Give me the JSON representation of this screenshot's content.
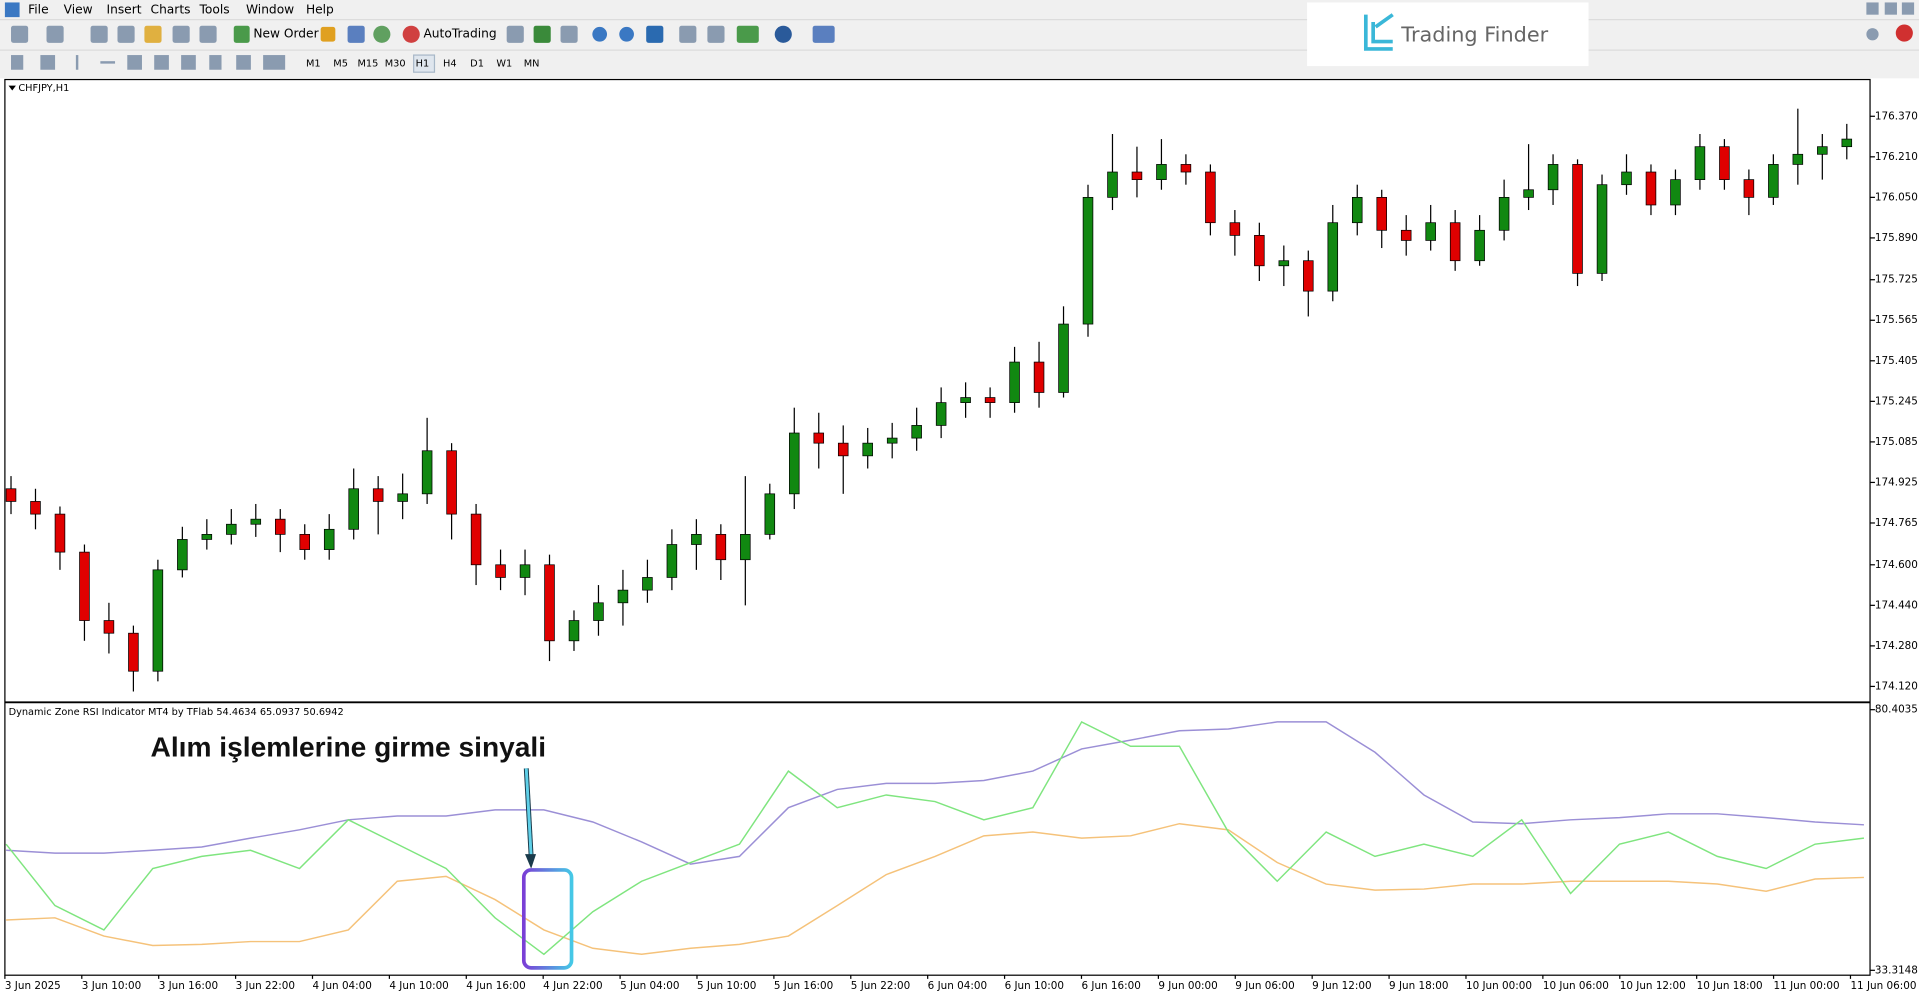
{
  "menu": [
    "File",
    "View",
    "Insert",
    "Charts",
    "Tools",
    "Window",
    "Help"
  ],
  "toolbar": {
    "new_order": "New Order",
    "auto_trading": "AutoTrading",
    "timeframes": [
      "M1",
      "M5",
      "M15",
      "M30",
      "H1",
      "H4",
      "D1",
      "W1",
      "MN"
    ]
  },
  "logo": "Trading Finder",
  "annotation": "Alım işlemlerine girme sinyali",
  "chart_data": [
    {
      "type": "candlestick",
      "title": "CHFJPY,H1",
      "up_color": "#118811",
      "down_color": "#e00000",
      "ylim": [
        174.062,
        176.515
      ],
      "yticks": [
        {
          "value": 176.37,
          "label": "176.370"
        },
        {
          "value": 176.21,
          "label": "176.210"
        },
        {
          "value": 176.05,
          "label": "176.050"
        },
        {
          "value": 175.89,
          "label": "175.890"
        },
        175.725,
        175.565,
        175.405,
        175.245,
        175.085,
        174.925,
        174.765,
        {
          "value": 174.6,
          "label": "174.600"
        },
        {
          "value": 174.44,
          "label": "174.440"
        },
        {
          "value": 174.28,
          "label": "174.280"
        },
        {
          "value": 174.12,
          "label": "174.120"
        }
      ],
      "time_labels": [
        "3 Jun 2025",
        "3 Jun 10:00",
        "3 Jun 16:00",
        "3 Jun 22:00",
        "4 Jun 04:00",
        "4 Jun 10:00",
        "4 Jun 16:00",
        "4 Jun 22:00",
        "5 Jun 04:00",
        "5 Jun 10:00",
        "5 Jun 16:00",
        "5 Jun 22:00",
        "6 Jun 04:00",
        "6 Jun 10:00",
        "6 Jun 16:00",
        "9 Jun 00:00",
        "9 Jun 06:00",
        "9 Jun 12:00",
        "9 Jun 18:00",
        "10 Jun 00:00",
        "10 Jun 06:00",
        "10 Jun 12:00",
        "10 Jun 18:00",
        "11 Jun 00:00",
        "11 Jun 06:00"
      ],
      "open": [
        174.9,
        174.85,
        174.8,
        174.65,
        174.38,
        174.33,
        174.18,
        174.58,
        174.7,
        174.72,
        174.76,
        174.78,
        174.72,
        174.66,
        174.74,
        174.9,
        174.85,
        174.88,
        175.05,
        174.8,
        174.6,
        174.55,
        174.6,
        174.3,
        174.38,
        174.45,
        174.5,
        174.55,
        174.68,
        174.72,
        174.62,
        174.72,
        174.88,
        175.12,
        175.08,
        175.03,
        175.08,
        175.1,
        175.15,
        175.24,
        175.26,
        175.24,
        175.4,
        175.28,
        175.55,
        176.05,
        176.15,
        176.12,
        176.18,
        176.15,
        175.95,
        175.9,
        175.78,
        175.8,
        175.68,
        175.95,
        176.05,
        175.92,
        175.88,
        175.95,
        175.8,
        175.92,
        176.05,
        176.08,
        176.18,
        175.75,
        176.1,
        176.15,
        176.02,
        176.12,
        176.25,
        176.12,
        176.05,
        176.18,
        176.22,
        176.25
      ],
      "high": [
        174.95,
        174.9,
        174.83,
        174.68,
        174.45,
        174.36,
        174.62,
        174.75,
        174.78,
        174.82,
        174.84,
        174.82,
        174.76,
        174.8,
        174.98,
        174.95,
        174.96,
        175.18,
        175.08,
        174.84,
        174.66,
        174.66,
        174.64,
        174.42,
        174.52,
        174.58,
        174.62,
        174.74,
        174.78,
        174.76,
        174.95,
        174.92,
        175.22,
        175.2,
        175.15,
        175.14,
        175.16,
        175.22,
        175.3,
        175.32,
        175.3,
        175.46,
        175.48,
        175.62,
        176.1,
        176.3,
        176.25,
        176.28,
        176.22,
        176.18,
        176.0,
        175.95,
        175.86,
        175.84,
        176.02,
        176.1,
        176.08,
        175.98,
        176.02,
        176.0,
        175.98,
        176.12,
        176.26,
        176.22,
        176.2,
        176.14,
        176.22,
        176.18,
        176.16,
        176.3,
        176.28,
        176.16,
        176.22,
        176.4,
        176.3,
        176.34
      ],
      "low": [
        174.8,
        174.74,
        174.58,
        174.3,
        174.25,
        174.1,
        174.14,
        174.55,
        174.66,
        174.68,
        174.71,
        174.65,
        174.62,
        174.62,
        174.7,
        174.72,
        174.78,
        174.84,
        174.7,
        174.52,
        174.5,
        174.48,
        174.22,
        174.26,
        174.32,
        174.36,
        174.45,
        174.5,
        174.58,
        174.54,
        174.44,
        174.7,
        174.82,
        174.98,
        174.88,
        174.98,
        175.02,
        175.05,
        175.1,
        175.18,
        175.18,
        175.2,
        175.22,
        175.26,
        175.5,
        176.0,
        176.05,
        176.08,
        176.1,
        175.9,
        175.82,
        175.72,
        175.7,
        175.58,
        175.64,
        175.9,
        175.85,
        175.82,
        175.84,
        175.76,
        175.78,
        175.88,
        176.0,
        176.02,
        175.7,
        175.72,
        176.06,
        175.98,
        175.98,
        176.08,
        176.08,
        175.98,
        176.02,
        176.1,
        176.12,
        176.2
      ],
      "close": [
        174.85,
        174.8,
        174.65,
        174.38,
        174.33,
        174.18,
        174.58,
        174.7,
        174.72,
        174.76,
        174.78,
        174.72,
        174.66,
        174.74,
        174.9,
        174.85,
        174.88,
        175.05,
        174.8,
        174.6,
        174.55,
        174.6,
        174.3,
        174.38,
        174.45,
        174.5,
        174.55,
        174.68,
        174.72,
        174.62,
        174.72,
        174.88,
        175.12,
        175.08,
        175.03,
        175.08,
        175.1,
        175.15,
        175.24,
        175.26,
        175.24,
        175.4,
        175.28,
        175.55,
        176.05,
        176.15,
        176.12,
        176.18,
        176.15,
        175.95,
        175.9,
        175.78,
        175.8,
        175.68,
        175.95,
        176.05,
        175.92,
        175.88,
        175.95,
        175.8,
        175.92,
        176.05,
        176.08,
        176.18,
        175.75,
        176.1,
        176.15,
        176.02,
        176.12,
        176.25,
        176.12,
        176.05,
        176.18,
        176.22,
        176.25,
        176.28
      ]
    },
    {
      "type": "line",
      "title": "Dynamic Zone RSI Indicator MT4 by TFlab 54.4634 65.0937 50.6942",
      "ylim": [
        33.3148,
        80.4035
      ],
      "yticks": [
        80.4035,
        33.3148
      ],
      "series": [
        {
          "color": "#9b8fd6",
          "values": [
            55.0,
            54.5,
            54.5,
            55.0,
            55.6,
            57.2,
            58.7,
            60.5,
            61.2,
            61.2,
            62.3,
            62.3,
            60.1,
            56.5,
            52.5,
            53.9,
            62.7,
            66.0,
            67.1,
            67.1,
            67.6,
            69.3,
            73.3,
            74.9,
            76.6,
            76.9,
            78.2,
            78.2,
            72.7,
            65.0,
            60.1,
            59.8,
            60.5,
            60.9,
            61.6,
            61.6,
            60.9,
            60.1,
            59.6
          ]
        },
        {
          "color": "#f5c27a",
          "values": [
            42.4,
            42.8,
            39.5,
            37.8,
            38.0,
            38.5,
            38.5,
            40.6,
            49.4,
            50.3,
            46.1,
            40.6,
            37.3,
            36.2,
            37.3,
            38.0,
            39.5,
            45.0,
            50.6,
            53.9,
            57.6,
            58.3,
            57.2,
            57.6,
            59.8,
            58.7,
            52.8,
            48.9,
            47.8,
            48.0,
            48.9,
            48.9,
            49.4,
            49.4,
            49.4,
            48.9,
            47.6,
            49.8,
            50.1
          ]
        },
        {
          "color": "#7fe57f",
          "values": [
            56.1,
            45.0,
            40.6,
            51.7,
            53.9,
            55.0,
            51.7,
            60.5,
            56.1,
            51.7,
            42.8,
            36.2,
            43.9,
            49.4,
            52.8,
            56.1,
            69.3,
            62.7,
            65.0,
            63.8,
            60.5,
            62.7,
            78.2,
            73.8,
            73.8,
            58.3,
            49.4,
            58.3,
            53.9,
            56.1,
            53.9,
            60.5,
            47.2,
            56.1,
            58.3,
            53.9,
            51.7,
            56.1,
            57.2
          ]
        }
      ]
    }
  ]
}
